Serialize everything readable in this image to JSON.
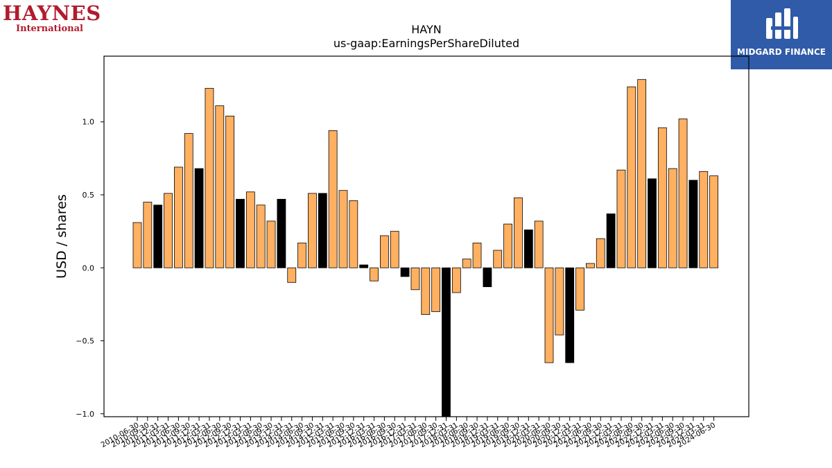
{
  "logos": {
    "left_brand": "HAYNES",
    "left_sub": "International",
    "right_name": "MIDGARD FINANCE"
  },
  "colors": {
    "bar_default": "#ffb060",
    "bar_highlight": "#000000",
    "logo_left": "#b01c2e",
    "logo_right_bg": "#2f5ba8"
  },
  "chart_data": {
    "type": "bar",
    "title": "HAYN",
    "subtitle": "us-gaap:EarningsPerShareDiluted",
    "ylabel": "USD / shares",
    "xlabel": "",
    "ylim": [
      -1.02,
      1.45
    ],
    "yticks": [
      -1.0,
      -0.5,
      0.0,
      0.5,
      1.0
    ],
    "ytick_labels": [
      "−1.0",
      "−0.5",
      "0.0",
      "0.5",
      "1.0"
    ],
    "grid": false,
    "categories": [
      "2010-06-30",
      "2010-09-30",
      "2010-12-31",
      "2011-03-31",
      "2011-06-30",
      "2011-09-30",
      "2011-12-31",
      "2012-03-31",
      "2012-06-30",
      "2012-09-30",
      "2012-12-31",
      "2013-03-31",
      "2013-06-30",
      "2013-09-30",
      "2013-12-31",
      "2014-03-31",
      "2014-06-30",
      "2014-09-30",
      "2014-12-31",
      "2015-03-31",
      "2015-06-30",
      "2015-09-30",
      "2015-12-31",
      "2016-03-31",
      "2016-06-30",
      "2016-09-30",
      "2016-12-31",
      "2017-03-31",
      "2017-06-30",
      "2017-09-30",
      "2017-12-31",
      "2018-03-31",
      "2018-06-30",
      "2018-09-30",
      "2018-12-31",
      "2019-03-31",
      "2019-06-30",
      "2019-09-30",
      "2019-12-31",
      "2020-03-31",
      "2020-06-30",
      "2020-09-30",
      "2020-12-31",
      "2021-03-31",
      "2021-06-30",
      "2021-09-30",
      "2021-12-31",
      "2022-03-31",
      "2022-06-30",
      "2022-09-30",
      "2022-12-31",
      "2023-03-31",
      "2023-06-30",
      "2023-09-30",
      "2023-12-31",
      "2024-03-31",
      "2024-06-30"
    ],
    "values": [
      0.31,
      0.45,
      0.43,
      0.51,
      0.69,
      0.92,
      0.68,
      1.23,
      1.11,
      1.04,
      0.47,
      0.52,
      0.43,
      0.32,
      0.47,
      -0.1,
      0.17,
      0.51,
      0.51,
      0.94,
      0.53,
      0.46,
      0.02,
      -0.09,
      0.22,
      0.25,
      -0.06,
      -0.15,
      -0.32,
      -0.3,
      -1.05,
      -0.17,
      0.06,
      0.17,
      -0.13,
      0.12,
      0.3,
      0.48,
      0.26,
      0.32,
      -0.65,
      -0.46,
      -0.65,
      -0.29,
      0.03,
      0.2,
      0.37,
      0.67,
      1.24,
      1.29,
      0.61,
      0.96,
      0.68,
      1.02,
      0.6,
      0.66,
      0.63
    ],
    "highlight": [
      false,
      false,
      true,
      false,
      false,
      false,
      true,
      false,
      false,
      false,
      true,
      false,
      false,
      false,
      true,
      false,
      false,
      false,
      true,
      false,
      false,
      false,
      true,
      false,
      false,
      false,
      true,
      false,
      false,
      false,
      true,
      false,
      false,
      false,
      true,
      false,
      false,
      false,
      true,
      false,
      false,
      false,
      true,
      false,
      false,
      false,
      true,
      false,
      false,
      false,
      true,
      false,
      false,
      false,
      true,
      false,
      false
    ]
  }
}
